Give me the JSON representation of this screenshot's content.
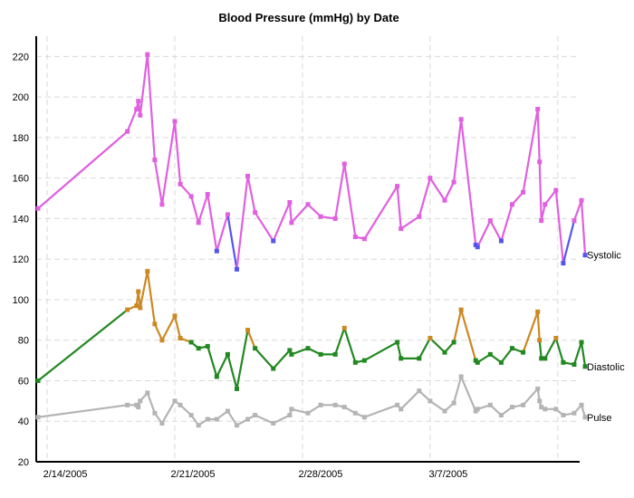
{
  "chart_data": {
    "type": "line",
    "title": "Blood Pressure (mmHg) by Date",
    "xlabel": "",
    "ylabel": "",
    "x_ticks": [
      "2/14/2005",
      "2/21/2005",
      "2/28/2005",
      "3/7/2005"
    ],
    "x_tick_days": [
      0,
      7,
      14,
      21
    ],
    "y_ticks": [
      20,
      40,
      60,
      80,
      100,
      120,
      140,
      160,
      180,
      200,
      220
    ],
    "ylim": [
      20,
      230
    ],
    "xlim_days": [
      -0.6,
      29.2
    ],
    "grid": true,
    "series": [
      {
        "name": "Systolic",
        "color_high": "#e060e0",
        "color_low": "#5555ee",
        "threshold": 130,
        "points": [
          [
            -0.5,
            145
          ],
          [
            4.4,
            183
          ],
          [
            4.9,
            194
          ],
          [
            5.0,
            198
          ],
          [
            5.1,
            191
          ],
          [
            5.5,
            221
          ],
          [
            5.9,
            169
          ],
          [
            6.3,
            147
          ],
          [
            7.0,
            188
          ],
          [
            7.3,
            157
          ],
          [
            7.9,
            151
          ],
          [
            8.3,
            138
          ],
          [
            8.8,
            152
          ],
          [
            9.3,
            124
          ],
          [
            9.9,
            142
          ],
          [
            10.4,
            115
          ],
          [
            11.0,
            161
          ],
          [
            11.4,
            143
          ],
          [
            12.4,
            129
          ],
          [
            13.3,
            148
          ],
          [
            13.4,
            138
          ],
          [
            14.3,
            147
          ],
          [
            15.0,
            141
          ],
          [
            15.8,
            140
          ],
          [
            16.3,
            167
          ],
          [
            16.9,
            131
          ],
          [
            17.4,
            130
          ],
          [
            19.2,
            156
          ],
          [
            19.4,
            135
          ],
          [
            20.4,
            141
          ],
          [
            21.0,
            160
          ],
          [
            21.8,
            149
          ],
          [
            22.3,
            158
          ],
          [
            22.7,
            189
          ],
          [
            23.5,
            127
          ],
          [
            23.6,
            126
          ],
          [
            24.3,
            139
          ],
          [
            24.9,
            129
          ],
          [
            25.5,
            147
          ],
          [
            26.1,
            153
          ],
          [
            26.9,
            194
          ],
          [
            27.0,
            168
          ],
          [
            27.1,
            139
          ],
          [
            27.3,
            147
          ],
          [
            27.9,
            154
          ],
          [
            28.3,
            118
          ],
          [
            28.9,
            139
          ],
          [
            29.3,
            149
          ],
          [
            29.5,
            122
          ]
        ]
      },
      {
        "name": "Diastolic",
        "color_high": "#cc8822",
        "color_low": "#228822",
        "threshold": 80,
        "points": [
          [
            -0.5,
            60
          ],
          [
            4.4,
            95
          ],
          [
            4.9,
            97
          ],
          [
            5.0,
            104
          ],
          [
            5.1,
            96
          ],
          [
            5.5,
            114
          ],
          [
            5.9,
            88
          ],
          [
            6.3,
            80
          ],
          [
            7.0,
            92
          ],
          [
            7.3,
            81
          ],
          [
            7.9,
            79
          ],
          [
            8.3,
            76
          ],
          [
            8.8,
            77
          ],
          [
            9.3,
            62
          ],
          [
            9.9,
            73
          ],
          [
            10.4,
            56
          ],
          [
            11.0,
            85
          ],
          [
            11.4,
            76
          ],
          [
            12.4,
            66
          ],
          [
            13.3,
            75
          ],
          [
            13.4,
            73
          ],
          [
            14.3,
            76
          ],
          [
            15.0,
            73
          ],
          [
            15.8,
            73
          ],
          [
            16.3,
            86
          ],
          [
            16.9,
            69
          ],
          [
            17.4,
            70
          ],
          [
            19.2,
            79
          ],
          [
            19.4,
            71
          ],
          [
            20.4,
            71
          ],
          [
            21.0,
            81
          ],
          [
            21.8,
            74
          ],
          [
            22.3,
            79
          ],
          [
            22.7,
            95
          ],
          [
            23.5,
            70
          ],
          [
            23.6,
            69
          ],
          [
            24.3,
            73
          ],
          [
            24.9,
            69
          ],
          [
            25.5,
            76
          ],
          [
            26.1,
            74
          ],
          [
            26.9,
            94
          ],
          [
            27.0,
            80
          ],
          [
            27.1,
            71
          ],
          [
            27.3,
            71
          ],
          [
            27.9,
            81
          ],
          [
            28.3,
            69
          ],
          [
            28.9,
            68
          ],
          [
            29.3,
            79
          ],
          [
            29.5,
            67
          ]
        ]
      },
      {
        "name": "Pulse",
        "color_high": "#b4b4b4",
        "color_low": "#b4b4b4",
        "threshold": 0,
        "points": [
          [
            -0.5,
            42
          ],
          [
            4.4,
            48
          ],
          [
            4.9,
            48
          ],
          [
            5.0,
            47
          ],
          [
            5.1,
            50
          ],
          [
            5.5,
            54
          ],
          [
            5.9,
            44
          ],
          [
            6.3,
            39
          ],
          [
            7.0,
            50
          ],
          [
            7.3,
            48
          ],
          [
            7.9,
            43
          ],
          [
            8.3,
            38
          ],
          [
            8.8,
            41
          ],
          [
            9.3,
            41
          ],
          [
            9.9,
            45
          ],
          [
            10.4,
            38
          ],
          [
            11.0,
            41
          ],
          [
            11.4,
            43
          ],
          [
            12.4,
            39
          ],
          [
            13.3,
            43
          ],
          [
            13.4,
            46
          ],
          [
            14.3,
            44
          ],
          [
            15.0,
            48
          ],
          [
            15.8,
            48
          ],
          [
            16.3,
            47
          ],
          [
            16.9,
            44
          ],
          [
            17.4,
            42
          ],
          [
            19.2,
            48
          ],
          [
            19.4,
            46
          ],
          [
            20.4,
            55
          ],
          [
            21.0,
            50
          ],
          [
            21.8,
            45
          ],
          [
            22.3,
            49
          ],
          [
            22.7,
            62
          ],
          [
            23.5,
            45
          ],
          [
            23.6,
            46
          ],
          [
            24.3,
            48
          ],
          [
            24.9,
            43
          ],
          [
            25.5,
            47
          ],
          [
            26.1,
            48
          ],
          [
            26.9,
            56
          ],
          [
            27.0,
            50
          ],
          [
            27.1,
            47
          ],
          [
            27.3,
            46
          ],
          [
            27.9,
            46
          ],
          [
            28.3,
            43
          ],
          [
            28.9,
            44
          ],
          [
            29.3,
            48
          ],
          [
            29.5,
            42
          ]
        ]
      }
    ]
  }
}
